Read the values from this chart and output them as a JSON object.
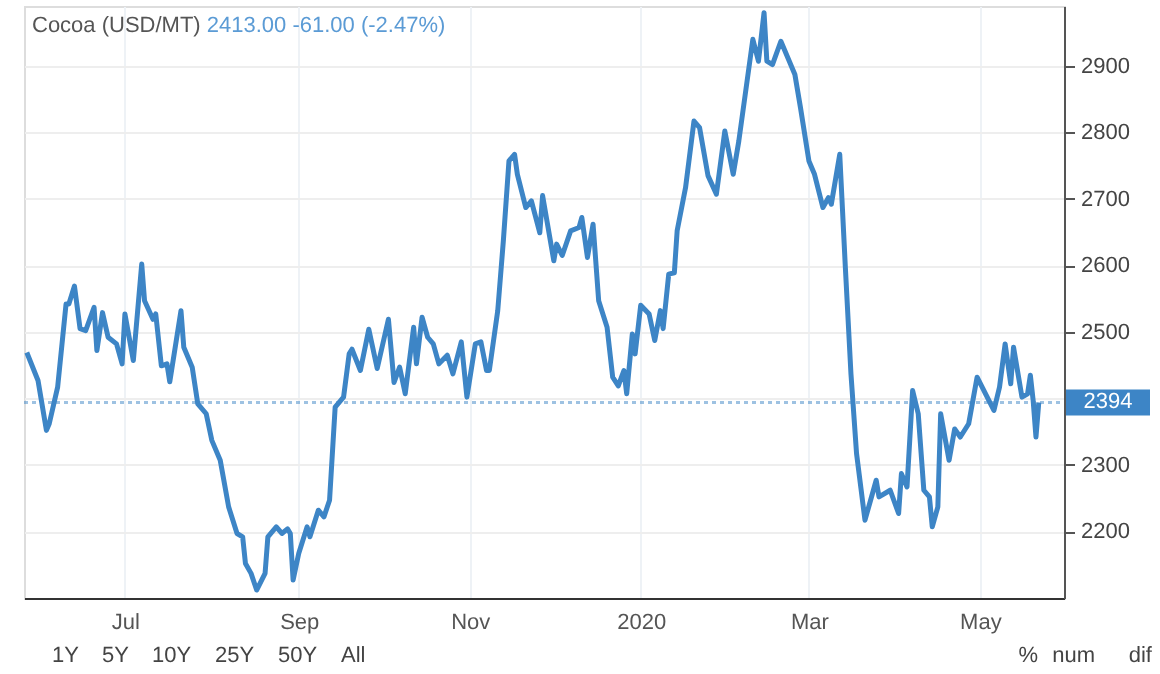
{
  "chart_data": {
    "type": "line",
    "title": "Cocoa (USD/MT)",
    "subtitle": "2413.00  -61.00 (-2.47%)",
    "x": [
      "2019-05-27",
      "2019-05-31",
      "2019-06-03",
      "2019-06-04",
      "2019-06-07",
      "2019-06-10",
      "2019-06-11",
      "2019-06-13",
      "2019-06-15",
      "2019-06-17",
      "2019-06-20",
      "2019-06-21",
      "2019-06-23",
      "2019-06-25",
      "2019-06-28",
      "2019-06-30",
      "2019-07-01",
      "2019-07-04",
      "2019-07-07",
      "2019-07-08",
      "2019-07-11",
      "2019-07-12",
      "2019-07-14",
      "2019-07-16",
      "2019-07-17",
      "2019-07-21",
      "2019-07-22",
      "2019-07-25",
      "2019-07-27",
      "2019-07-30",
      "2019-08-01",
      "2019-08-04",
      "2019-08-07",
      "2019-08-10",
      "2019-08-12",
      "2019-08-13",
      "2019-08-15",
      "2019-08-17",
      "2019-08-20",
      "2019-08-21",
      "2019-08-24",
      "2019-08-26",
      "2019-08-28",
      "2019-08-29",
      "2019-08-30",
      "2019-09-01",
      "2019-09-04",
      "2019-09-05",
      "2019-09-08",
      "2019-09-10",
      "2019-09-12",
      "2019-09-14",
      "2019-09-17",
      "2019-09-19",
      "2019-09-20",
      "2019-09-23",
      "2019-09-26",
      "2019-09-29",
      "2019-10-03",
      "2019-10-05",
      "2019-10-07",
      "2019-10-09",
      "2019-10-12",
      "2019-10-13",
      "2019-10-15",
      "2019-10-17",
      "2019-10-19",
      "2019-10-21",
      "2019-10-24",
      "2019-10-26",
      "2019-10-29",
      "2019-10-31",
      "2019-11-03",
      "2019-11-05",
      "2019-11-07",
      "2019-11-08",
      "2019-11-11",
      "2019-11-13",
      "2019-11-15",
      "2019-11-17",
      "2019-11-18",
      "2019-11-21",
      "2019-11-23",
      "2019-11-26",
      "2019-11-27",
      "2019-12-01",
      "2019-12-02",
      "2019-12-04",
      "2019-12-07",
      "2019-12-10",
      "2019-12-11",
      "2019-12-13",
      "2019-12-15",
      "2019-12-17",
      "2019-12-20",
      "2019-12-22",
      "2019-12-24",
      "2019-12-26",
      "2019-12-27",
      "2019-12-29",
      "2019-12-30",
      "2020-01-01",
      "2020-01-04",
      "2020-01-06",
      "2020-01-08",
      "2020-01-09",
      "2020-01-11",
      "2020-01-13",
      "2020-01-14",
      "2020-01-17",
      "2020-01-20",
      "2020-01-22",
      "2020-01-25",
      "2020-01-28",
      "2020-01-31",
      "2020-02-03",
      "2020-02-05",
      "2020-02-10",
      "2020-02-12",
      "2020-02-14",
      "2020-02-15",
      "2020-02-17",
      "2020-02-20",
      "2020-02-25",
      "2020-02-27",
      "2020-03-01",
      "2020-03-03",
      "2020-03-06",
      "2020-03-08",
      "2020-03-09",
      "2020-03-12",
      "2020-03-14",
      "2020-03-16",
      "2020-03-18",
      "2020-03-21",
      "2020-03-23",
      "2020-03-25",
      "2020-03-26",
      "2020-03-30",
      "2020-04-02",
      "2020-04-03",
      "2020-04-05",
      "2020-04-07",
      "2020-04-09",
      "2020-04-11",
      "2020-04-13",
      "2020-04-14",
      "2020-04-16",
      "2020-04-17",
      "2020-04-20",
      "2020-04-22",
      "2020-04-24",
      "2020-04-27",
      "2020-04-30",
      "2020-05-06",
      "2020-05-08",
      "2020-05-10",
      "2020-05-12",
      "2020-05-13",
      "2020-05-16",
      "2020-05-18",
      "2020-05-19",
      "2020-05-20",
      "2020-05-21",
      "2020-05-22"
    ],
    "series": [
      {
        "color": "#3d85c6",
        "values": [
          2469,
          2427,
          2352,
          2362,
          2417,
          2542,
          2542,
          2569,
          2505,
          2502,
          2537,
          2472,
          2529,
          2492,
          2482,
          2452,
          2527,
          2457,
          2602,
          2547,
          2519,
          2527,
          2449,
          2452,
          2425,
          2532,
          2477,
          2447,
          2392,
          2377,
          2337,
          2307,
          2237,
          2197,
          2192,
          2152,
          2137,
          2112,
          2137,
          2192,
          2207,
          2197,
          2204,
          2197,
          2127,
          2167,
          2207,
          2192,
          2232,
          2222,
          2247,
          2387,
          2402,
          2467,
          2474,
          2442,
          2504,
          2445,
          2519,
          2424,
          2447,
          2407,
          2507,
          2452,
          2522,
          2492,
          2482,
          2452,
          2465,
          2437,
          2485,
          2402,
          2482,
          2485,
          2442,
          2442,
          2532,
          2637,
          2757,
          2767,
          2737,
          2687,
          2697,
          2649,
          2705,
          2607,
          2632,
          2615,
          2652,
          2657,
          2672,
          2612,
          2662,
          2547,
          2507,
          2432,
          2419,
          2442,
          2407,
          2497,
          2467,
          2540,
          2527,
          2487,
          2532,
          2505,
          2587,
          2589,
          2652,
          2717,
          2817,
          2807,
          2735,
          2707,
          2802,
          2737,
          2787,
          2940,
          2907,
          2980,
          2907,
          2902,
          2937,
          2887,
          2837,
          2757,
          2737,
          2687,
          2702,
          2692,
          2767,
          2597,
          2437,
          2317,
          2217,
          2247,
          2277,
          2252,
          2262,
          2227,
          2287,
          2267,
          2412,
          2377,
          2262,
          2252,
          2207,
          2237,
          2377,
          2307,
          2354,
          2342,
          2362,
          2432,
          2382,
          2417,
          2482,
          2422,
          2477,
          2402,
          2407,
          2435,
          2397,
          2342,
          2394
        ]
      }
    ],
    "xlim": [
      "2019-05-26",
      "2020-05-31"
    ],
    "xticks": [
      {
        "value": "2019-07-01",
        "label": "Jul"
      },
      {
        "value": "2019-09-01",
        "label": "Sep"
      },
      {
        "value": "2019-11-01",
        "label": "Nov"
      },
      {
        "value": "2020-01-01",
        "label": "2020"
      },
      {
        "value": "2020-03-01",
        "label": "Mar"
      },
      {
        "value": "2020-05-01",
        "label": "May"
      }
    ],
    "ylim": [
      2100,
      2990
    ],
    "yticks": [
      2200,
      2300,
      {
        "value": 2400,
        "label": null
      },
      2500,
      2600,
      2700,
      2800,
      2900
    ],
    "ref_lines": [
      {
        "axis": "y",
        "value": 2394,
        "label": "2394",
        "color": "#3d85c6",
        "line_style": "dotted"
      }
    ],
    "grid": true,
    "marker": "none",
    "line_style": "solid",
    "annotations": [
      "1Y",
      "5Y",
      "10Y",
      "25Y",
      "50Y",
      "All",
      "%",
      "num",
      "dif"
    ]
  }
}
